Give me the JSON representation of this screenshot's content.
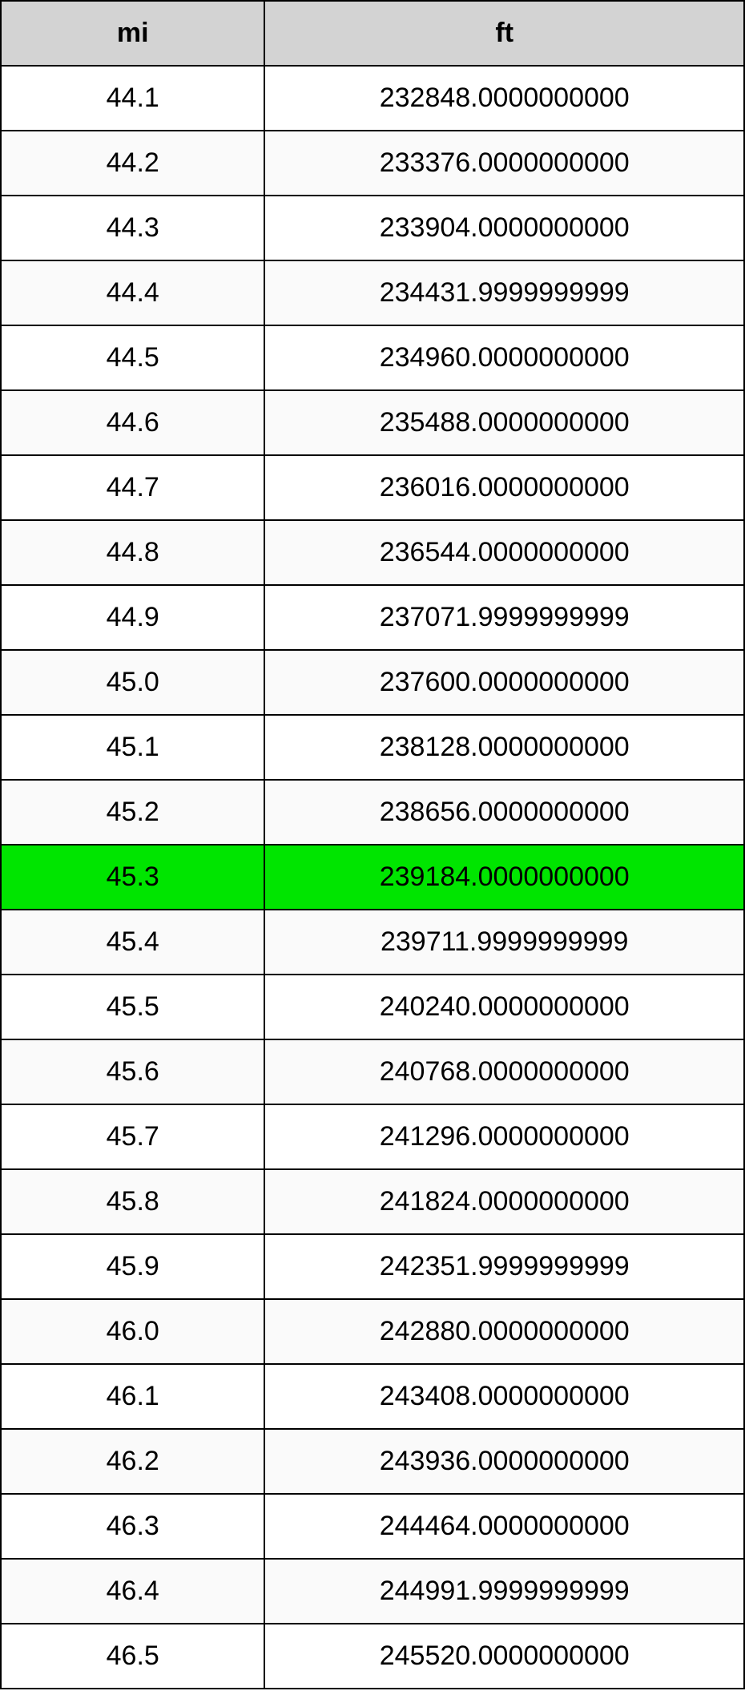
{
  "table": {
    "columns": [
      "mi",
      "ft"
    ],
    "header_bg": "#d3d3d3",
    "row_alt_bg": "#fafafa",
    "row_bg": "#ffffff",
    "highlight_bg": "#00e500",
    "border_color": "#000000",
    "font_size": 34,
    "col_widths_pct": [
      35.5,
      64.5
    ],
    "highlight_row_index": 12,
    "rows": [
      [
        "44.1",
        "232848.0000000000"
      ],
      [
        "44.2",
        "233376.0000000000"
      ],
      [
        "44.3",
        "233904.0000000000"
      ],
      [
        "44.4",
        "234431.9999999999"
      ],
      [
        "44.5",
        "234960.0000000000"
      ],
      [
        "44.6",
        "235488.0000000000"
      ],
      [
        "44.7",
        "236016.0000000000"
      ],
      [
        "44.8",
        "236544.0000000000"
      ],
      [
        "44.9",
        "237071.9999999999"
      ],
      [
        "45.0",
        "237600.0000000000"
      ],
      [
        "45.1",
        "238128.0000000000"
      ],
      [
        "45.2",
        "238656.0000000000"
      ],
      [
        "45.3",
        "239184.0000000000"
      ],
      [
        "45.4",
        "239711.9999999999"
      ],
      [
        "45.5",
        "240240.0000000000"
      ],
      [
        "45.6",
        "240768.0000000000"
      ],
      [
        "45.7",
        "241296.0000000000"
      ],
      [
        "45.8",
        "241824.0000000000"
      ],
      [
        "45.9",
        "242351.9999999999"
      ],
      [
        "46.0",
        "242880.0000000000"
      ],
      [
        "46.1",
        "243408.0000000000"
      ],
      [
        "46.2",
        "243936.0000000000"
      ],
      [
        "46.3",
        "244464.0000000000"
      ],
      [
        "46.4",
        "244991.9999999999"
      ],
      [
        "46.5",
        "245520.0000000000"
      ]
    ]
  }
}
